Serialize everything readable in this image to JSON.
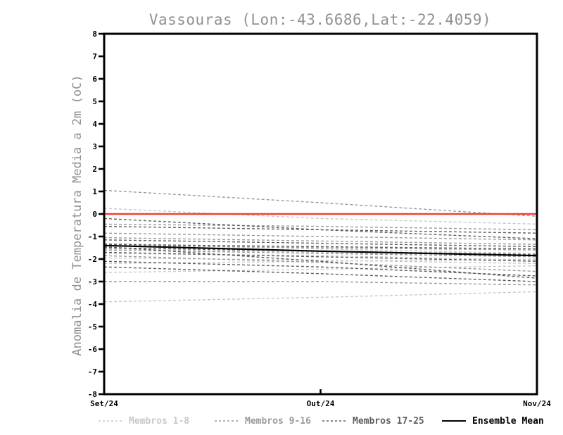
{
  "chart_data": {
    "type": "line",
    "title": "Vassouras (Lon:-43.6686,Lat:-22.4059)",
    "ylabel": "Anomalia de Temperatura Media a 2m (oC)",
    "xlabel": "",
    "categories": [
      "Set/24",
      "Out/24",
      "Nov/24"
    ],
    "ylim": [
      -8,
      8
    ],
    "ytick_step": 1,
    "grid": false,
    "legend_position": "bottom",
    "series": [
      {
        "name": "Membros 1-8",
        "color": "#c8c8c8",
        "style": "dashed",
        "members": [
          [
            0.25,
            -0.2,
            -0.45
          ],
          [
            -3.9,
            -3.7,
            -3.45
          ],
          [
            -2.6,
            -2.45,
            -2.3
          ],
          [
            -1.3,
            -1.55,
            -1.75
          ],
          [
            -1.55,
            -1.7,
            -1.9
          ],
          [
            -1.75,
            -1.85,
            -2.05
          ],
          [
            -1.95,
            -2.05,
            -2.2
          ],
          [
            -2.2,
            -2.1,
            -2.0
          ]
        ]
      },
      {
        "name": "Membros 9-16",
        "color": "#9a9a9a",
        "style": "dashed",
        "members": [
          [
            1.05,
            0.5,
            -0.1
          ],
          [
            -3.0,
            -3.0,
            -3.15
          ],
          [
            -0.45,
            -0.55,
            -0.7
          ],
          [
            -0.85,
            -1.0,
            -1.15
          ],
          [
            -1.05,
            -1.2,
            -1.35
          ],
          [
            -1.4,
            -1.5,
            -1.6
          ],
          [
            -1.6,
            -1.75,
            -1.9
          ],
          [
            -1.85,
            -2.15,
            -2.55
          ]
        ]
      },
      {
        "name": "Membros 17-25",
        "color": "#5e5e5e",
        "style": "dashed",
        "members": [
          [
            -0.2,
            -0.7,
            -1.1
          ],
          [
            -0.55,
            -0.7,
            -0.85
          ],
          [
            -1.15,
            -1.3,
            -1.45
          ],
          [
            -1.35,
            -1.45,
            -1.55
          ],
          [
            -1.5,
            -1.65,
            -1.8
          ],
          [
            -1.7,
            -1.9,
            -2.1
          ],
          [
            -2.1,
            -2.35,
            -2.75
          ],
          [
            -2.35,
            -2.65,
            -3.0
          ],
          [
            -1.45,
            -2.1,
            -2.85
          ]
        ]
      }
    ],
    "ensemble_mean": {
      "name": "Ensemble Mean",
      "color": "#000000",
      "style": "solid",
      "values": [
        -1.4,
        -1.65,
        -1.85
      ]
    },
    "reference_line": {
      "value": 0,
      "color": "#ef4138"
    },
    "legend": [
      {
        "label": "Membros 1-8",
        "color": "#c8c8c8",
        "dashed": true
      },
      {
        "label": "Membros 9-16",
        "color": "#9a9a9a",
        "dashed": true
      },
      {
        "label": "Membros 17-25",
        "color": "#5e5e5e",
        "dashed": true
      },
      {
        "label": "Ensemble Mean",
        "color": "#000000",
        "dashed": false
      }
    ]
  }
}
